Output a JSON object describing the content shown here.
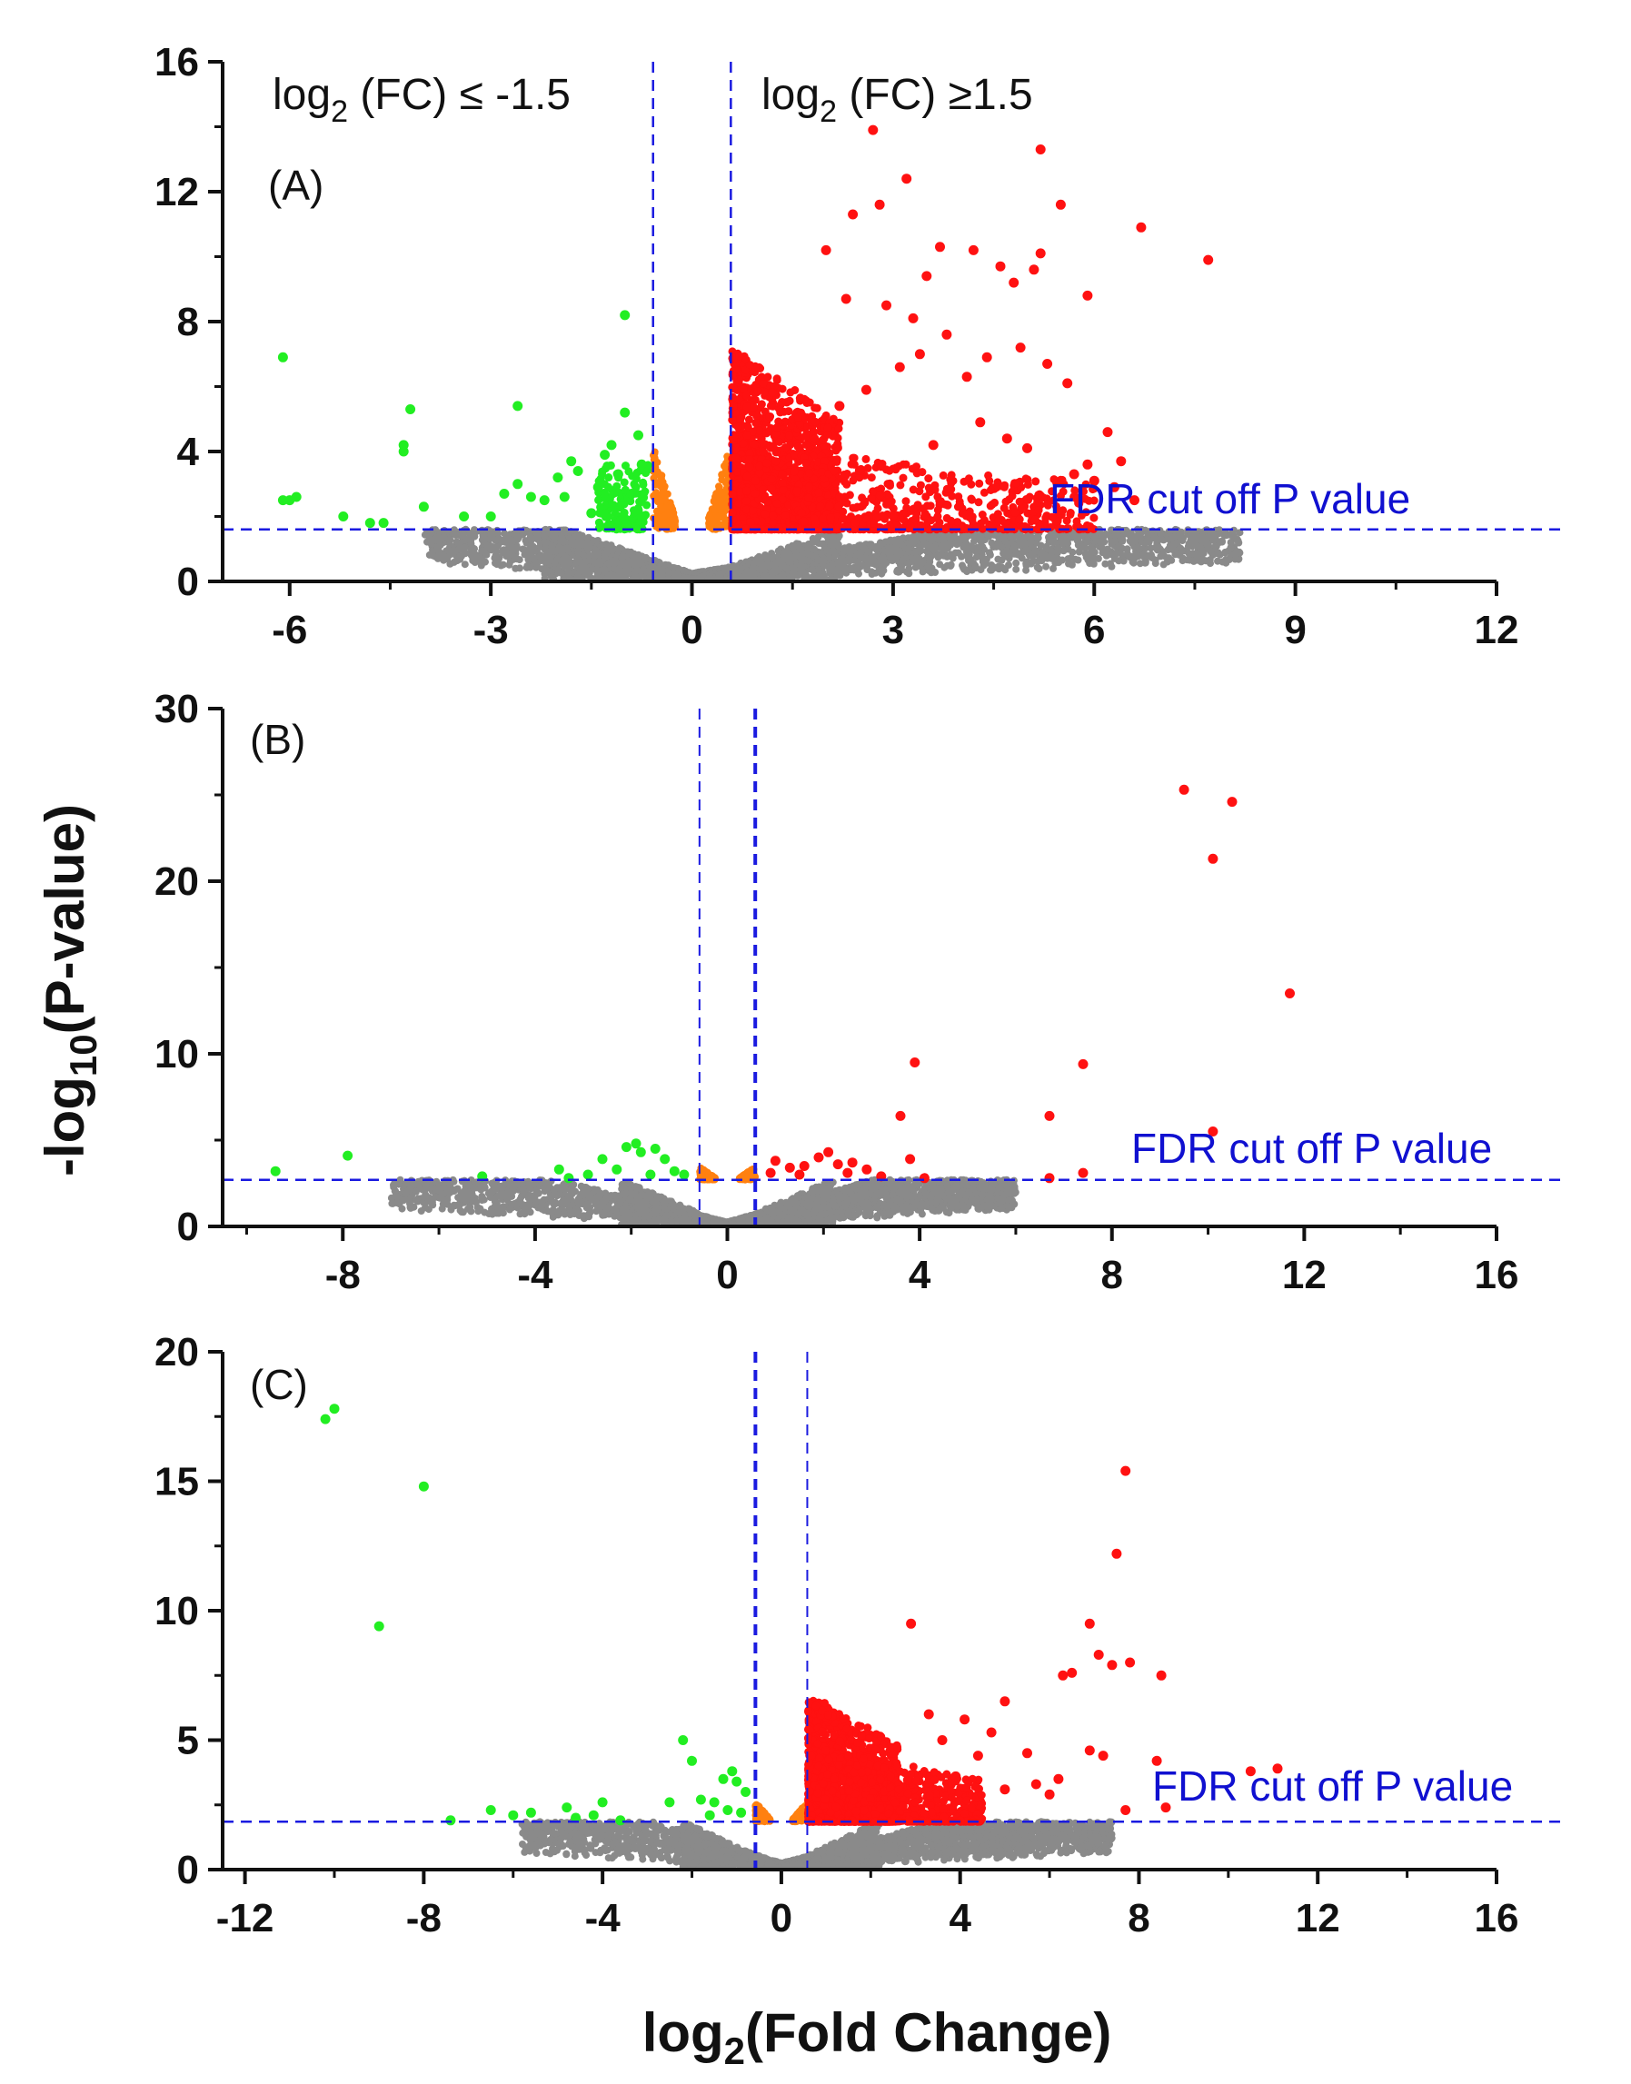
{
  "figure": {
    "xlabel": "log",
    "xlabel_sub": "2",
    "xlabel_rest": "(Fold Change)",
    "ylabel": "-log",
    "ylabel_sub": "10",
    "ylabel_rest": "(P-value)"
  },
  "colors": {
    "up": "#ff1111",
    "down": "#22ee22",
    "border": "#ff8010",
    "ns": "#8a8a8a",
    "threshold": "#1a1ae0"
  },
  "chart_data": [
    {
      "type": "scatter",
      "panel_label": "(A)",
      "xlim": [
        -7,
        12
      ],
      "ylim": [
        0,
        16
      ],
      "xticks": [
        -6,
        -3,
        0,
        3,
        6,
        9,
        12
      ],
      "yticks": [
        0,
        4,
        8,
        12,
        16
      ],
      "fc_threshold_x": [
        -0.58,
        0.58
      ],
      "fdr_threshold_y": 1.6,
      "fdr_label": "FDR cut off P value",
      "left_label": {
        "pre": "log",
        "sub": "2",
        "post": " (FC) ≤ -1.5"
      },
      "right_label": {
        "pre": "log",
        "sub": "2",
        "post": " (FC) ≥1.5"
      },
      "up_points": [
        [
          2.7,
          13.9
        ],
        [
          5.2,
          13.3
        ],
        [
          3.2,
          12.4
        ],
        [
          5.5,
          11.6
        ],
        [
          2.4,
          11.3
        ],
        [
          2.8,
          11.6
        ],
        [
          6.7,
          10.9
        ],
        [
          7.7,
          9.9
        ],
        [
          3.7,
          10.3
        ],
        [
          4.2,
          10.2
        ],
        [
          5.2,
          10.1
        ],
        [
          2.0,
          10.2
        ],
        [
          3.5,
          9.4
        ],
        [
          4.6,
          9.7
        ],
        [
          5.1,
          9.6
        ],
        [
          5.9,
          8.8
        ],
        [
          4.8,
          9.2
        ],
        [
          2.3,
          8.7
        ],
        [
          2.9,
          8.5
        ],
        [
          3.3,
          8.1
        ],
        [
          3.8,
          7.6
        ],
        [
          4.9,
          7.2
        ],
        [
          5.3,
          6.7
        ],
        [
          5.6,
          6.1
        ],
        [
          4.4,
          6.9
        ],
        [
          4.1,
          6.3
        ],
        [
          3.4,
          7.0
        ],
        [
          3.1,
          6.6
        ],
        [
          2.6,
          5.9
        ],
        [
          2.2,
          5.4
        ],
        [
          6.2,
          4.6
        ],
        [
          5.9,
          3.6
        ],
        [
          6.4,
          3.7
        ],
        [
          5.7,
          3.3
        ],
        [
          6.0,
          3.1
        ],
        [
          4.7,
          4.4
        ],
        [
          4.3,
          4.9
        ],
        [
          3.6,
          4.2
        ],
        [
          5.0,
          4.1
        ],
        [
          6.3,
          2.9
        ],
        [
          6.6,
          2.5
        ]
      ],
      "up_cluster": {
        "x": [
          0.6,
          2.2
        ],
        "y": [
          1.6,
          7.2
        ]
      },
      "up_spread": {
        "x": [
          1.5,
          6.0
        ],
        "y": [
          1.6,
          4.0
        ]
      },
      "down_points": [
        [
          -6.1,
          6.9
        ],
        [
          -1.0,
          8.2
        ],
        [
          -4.2,
          5.3
        ],
        [
          -2.6,
          5.4
        ],
        [
          -1.0,
          5.2
        ],
        [
          -4.3,
          4.2
        ],
        [
          -4.3,
          4.0
        ],
        [
          -6.0,
          2.5
        ],
        [
          -6.1,
          2.5
        ],
        [
          -5.9,
          2.6
        ],
        [
          -5.2,
          2.0
        ],
        [
          -4.8,
          1.8
        ],
        [
          -4.6,
          1.8
        ],
        [
          -4.0,
          2.3
        ],
        [
          -3.4,
          2.0
        ],
        [
          -3.0,
          2.0
        ],
        [
          -2.8,
          2.7
        ],
        [
          -2.6,
          3.0
        ],
        [
          -2.4,
          2.6
        ],
        [
          -2.2,
          2.5
        ],
        [
          -2.0,
          3.2
        ],
        [
          -1.9,
          2.6
        ],
        [
          -1.8,
          3.7
        ],
        [
          -1.7,
          3.4
        ],
        [
          -1.5,
          2.1
        ],
        [
          -1.4,
          2.9
        ],
        [
          -1.3,
          3.9
        ],
        [
          -1.2,
          4.2
        ],
        [
          -1.1,
          3.3
        ],
        [
          -0.9,
          2.7
        ],
        [
          -0.8,
          4.5
        ],
        [
          -0.75,
          3.6
        ]
      ],
      "down_cluster": {
        "x": [
          -1.4,
          -0.65
        ],
        "y": [
          1.6,
          3.6
        ]
      },
      "ns_extent": {
        "xmin": -4.0,
        "xmax": 8.2,
        "ymax_left": 1.6,
        "ymax_right": 1.6
      }
    },
    {
      "type": "scatter",
      "panel_label": "(B)",
      "xlim": [
        -10.5,
        16
      ],
      "ylim": [
        0,
        30
      ],
      "xticks": [
        -8,
        -4,
        0,
        4,
        8,
        12,
        16
      ],
      "yticks": [
        0,
        10,
        20,
        30
      ],
      "fc_threshold_x": [
        -0.58,
        0.58
      ],
      "fdr_threshold_y": 2.7,
      "fdr_label": "FDR cut off P value",
      "up_points": [
        [
          9.5,
          25.3
        ],
        [
          10.5,
          24.6
        ],
        [
          10.1,
          21.3
        ],
        [
          11.7,
          13.5
        ],
        [
          3.9,
          9.5
        ],
        [
          7.4,
          9.4
        ],
        [
          3.6,
          6.4
        ],
        [
          6.7,
          6.4
        ],
        [
          10.1,
          5.5
        ],
        [
          3.8,
          3.9
        ],
        [
          7.4,
          3.1
        ],
        [
          6.7,
          2.8
        ],
        [
          1.0,
          3.8
        ],
        [
          1.3,
          3.4
        ],
        [
          1.6,
          3.5
        ],
        [
          1.9,
          4.0
        ],
        [
          2.1,
          4.3
        ],
        [
          2.3,
          3.6
        ],
        [
          2.5,
          3.1
        ],
        [
          2.6,
          3.7
        ],
        [
          0.9,
          3.1
        ],
        [
          1.5,
          3.0
        ],
        [
          3.2,
          2.9
        ],
        [
          4.1,
          2.8
        ],
        [
          2.9,
          3.3
        ]
      ],
      "down_points": [
        [
          -9.4,
          3.2
        ],
        [
          -7.9,
          4.1
        ],
        [
          -2.6,
          3.9
        ],
        [
          -3.5,
          3.3
        ],
        [
          -3.3,
          2.8
        ],
        [
          -2.3,
          3.3
        ],
        [
          -2.1,
          4.6
        ],
        [
          -1.9,
          4.8
        ],
        [
          -1.8,
          4.3
        ],
        [
          -1.5,
          4.5
        ],
        [
          -1.3,
          3.9
        ],
        [
          -1.1,
          3.2
        ],
        [
          -1.6,
          3.0
        ],
        [
          -0.9,
          3.0
        ],
        [
          -2.9,
          3.0
        ],
        [
          -5.1,
          2.9
        ]
      ],
      "ns_extent": {
        "xmin": -7.0,
        "xmax": 6.0,
        "ymax_left": 2.6,
        "ymax_right": 2.6
      }
    },
    {
      "type": "scatter",
      "panel_label": "(C)",
      "xlim": [
        -12.5,
        16
      ],
      "ylim": [
        0,
        20
      ],
      "xticks": [
        -12,
        -8,
        -4,
        0,
        4,
        8,
        12,
        16
      ],
      "yticks": [
        0,
        5,
        10,
        15,
        20
      ],
      "fc_threshold_x": [
        -0.58,
        0.58
      ],
      "fdr_threshold_y": 1.85,
      "fdr_label": "FDR cut off P value",
      "up_points": [
        [
          7.7,
          15.4
        ],
        [
          7.5,
          12.2
        ],
        [
          2.9,
          9.5
        ],
        [
          6.9,
          9.5
        ],
        [
          7.1,
          8.3
        ],
        [
          7.8,
          8.0
        ],
        [
          7.4,
          7.9
        ],
        [
          8.5,
          7.5
        ],
        [
          6.3,
          7.5
        ],
        [
          6.5,
          7.6
        ],
        [
          5.0,
          6.5
        ],
        [
          4.7,
          5.3
        ],
        [
          5.5,
          4.5
        ],
        [
          6.2,
          3.5
        ],
        [
          6.9,
          4.6
        ],
        [
          7.2,
          4.4
        ],
        [
          8.4,
          4.2
        ],
        [
          10.5,
          3.8
        ],
        [
          11.1,
          3.9
        ],
        [
          3.3,
          6.0
        ],
        [
          4.1,
          5.8
        ],
        [
          3.6,
          5.0
        ],
        [
          4.4,
          4.4
        ],
        [
          3.9,
          3.6
        ],
        [
          5.7,
          3.3
        ],
        [
          5.0,
          3.1
        ],
        [
          6.0,
          2.9
        ],
        [
          7.7,
          2.3
        ],
        [
          8.6,
          2.4
        ]
      ],
      "up_cluster": {
        "x": [
          0.6,
          2.6
        ],
        "y": [
          1.85,
          6.8
        ]
      },
      "up_spread": {
        "x": [
          1.5,
          4.5
        ],
        "y": [
          1.85,
          4.5
        ]
      },
      "down_points": [
        [
          -10.0,
          17.8
        ],
        [
          -10.2,
          17.4
        ],
        [
          -8.0,
          14.8
        ],
        [
          -9.0,
          9.4
        ],
        [
          -2.2,
          5.0
        ],
        [
          -2.0,
          4.2
        ],
        [
          -1.1,
          3.8
        ],
        [
          -1.0,
          3.4
        ],
        [
          -1.3,
          3.5
        ],
        [
          -0.8,
          3.0
        ],
        [
          -1.5,
          2.6
        ],
        [
          -1.8,
          2.7
        ],
        [
          -2.5,
          2.6
        ],
        [
          -0.9,
          2.2
        ],
        [
          -1.2,
          2.3
        ],
        [
          -1.6,
          2.1
        ],
        [
          -4.0,
          2.6
        ],
        [
          -4.8,
          2.4
        ],
        [
          -4.2,
          2.1
        ],
        [
          -3.6,
          1.9
        ],
        [
          -6.5,
          2.3
        ],
        [
          -6.0,
          2.1
        ],
        [
          -7.4,
          1.9
        ],
        [
          -4.6,
          2.0
        ],
        [
          -5.6,
          2.2
        ]
      ],
      "ns_extent": {
        "xmin": -5.8,
        "xmax": 7.4,
        "ymax_left": 1.85,
        "ymax_right": 1.85
      }
    }
  ]
}
